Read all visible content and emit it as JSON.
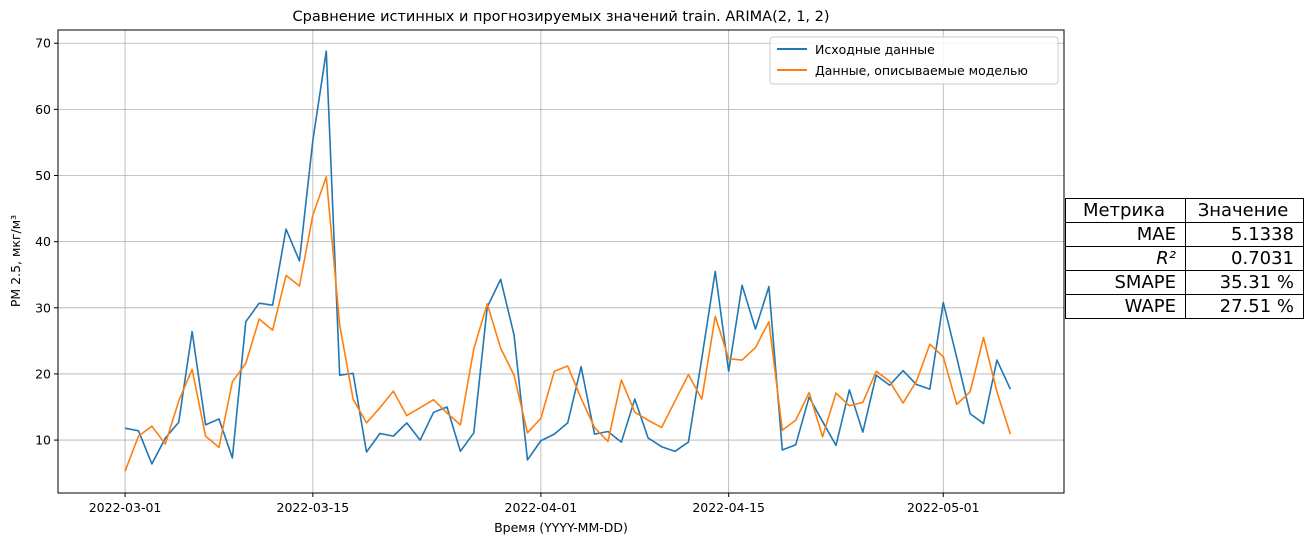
{
  "chart_data": {
    "type": "line",
    "title": "Сравнение истинных и прогнозируемых значений train. ARIMA(2, 1, 2)",
    "xlabel": "Время (YYYY-MM-DD)",
    "ylabel": "PM 2.5, мкг/м³",
    "x_start": "2022-03-01",
    "x_ticks": [
      "2022-03-01",
      "2022-03-15",
      "2022-04-01",
      "2022-04-15",
      "2022-05-01"
    ],
    "y_ticks": [
      10,
      20,
      30,
      40,
      50,
      60,
      70
    ],
    "xlim": [
      "2022-02-24",
      "2022-05-10"
    ],
    "ylim": [
      2,
      72
    ],
    "grid": true,
    "legend_position": "upper right",
    "series": [
      {
        "name": "Исходные данные",
        "color": "#1f77b4",
        "values": [
          11.8,
          11.4,
          6.4,
          10.3,
          12.7,
          26.4,
          12.3,
          13.2,
          7.3,
          27.9,
          30.7,
          30.4,
          41.9,
          37.1,
          55.3,
          68.8,
          19.8,
          20.1,
          8.2,
          11.0,
          10.6,
          12.6,
          10.0,
          14.2,
          15.0,
          8.3,
          11.1,
          30.1,
          34.3,
          25.9,
          7.0,
          9.9,
          10.9,
          12.6,
          21.1,
          10.9,
          11.3,
          9.7,
          16.2,
          10.3,
          9.0,
          8.3,
          9.7,
          22.4,
          35.5,
          20.4,
          33.4,
          26.8,
          33.2,
          8.5,
          9.3,
          16.5,
          12.8,
          9.2,
          17.6,
          11.2,
          19.8,
          18.3,
          20.5,
          18.4,
          17.7,
          30.8,
          22.5,
          14.0,
          12.5,
          22.1,
          17.7
        ],
        "first_x": "2022-03-01"
      },
      {
        "name": "Данные, описываемые моделью",
        "color": "#ff7f0e",
        "values": [
          5.3,
          10.6,
          12.1,
          9.4,
          15.9,
          20.7,
          10.6,
          8.9,
          18.8,
          21.6,
          28.3,
          26.6,
          34.9,
          33.3,
          44.0,
          49.8,
          27.4,
          16.2,
          12.6,
          14.9,
          17.4,
          13.7,
          14.9,
          16.1,
          14.1,
          12.3,
          23.8,
          30.6,
          23.9,
          19.8,
          11.1,
          13.3,
          20.4,
          21.2,
          16.3,
          11.9,
          9.8,
          19.1,
          14.2,
          13.0,
          11.9,
          15.9,
          19.9,
          16.2,
          28.7,
          22.3,
          22.1,
          24.0,
          27.9,
          11.5,
          13.0,
          17.2,
          10.5,
          17.1,
          15.2,
          15.7,
          20.4,
          18.9,
          15.6,
          18.9,
          24.5,
          22.6,
          15.4,
          17.3,
          25.5,
          17.3,
          10.9
        ],
        "first_x": "2022-03-01"
      }
    ]
  },
  "metrics_table": {
    "header": [
      "Метрика",
      "Значение"
    ],
    "rows": [
      {
        "metric": "MAE",
        "value": "5.1338"
      },
      {
        "metric": "R²",
        "value": "0.7031"
      },
      {
        "metric": "SMAPE",
        "value": "35.31 %"
      },
      {
        "metric": "WAPE",
        "value": "27.51 %"
      }
    ]
  }
}
